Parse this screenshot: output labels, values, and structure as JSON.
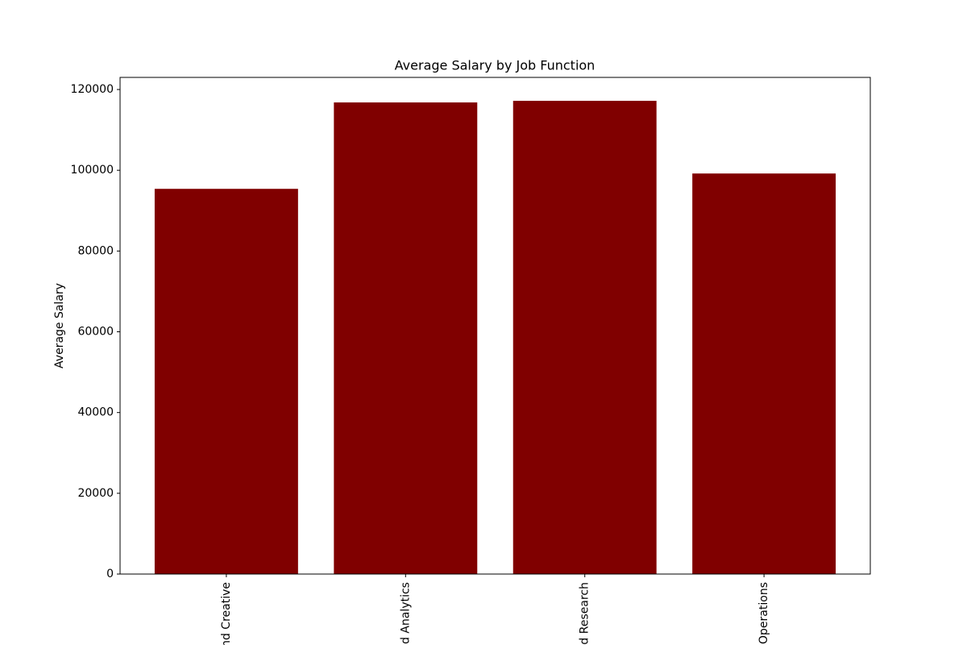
{
  "chart_data": {
    "type": "bar",
    "title": "Average Salary by Job Function",
    "y_label": "Average Salary",
    "categories": [
      "nd Creative",
      "d Analytics",
      "d Research",
      "Operations"
    ],
    "values": [
      95400,
      116800,
      117200,
      99200
    ],
    "color": "#800000",
    "ylim": [
      0,
      123000
    ],
    "yticks": [
      0,
      20000,
      40000,
      60000,
      80000,
      100000,
      120000
    ]
  }
}
